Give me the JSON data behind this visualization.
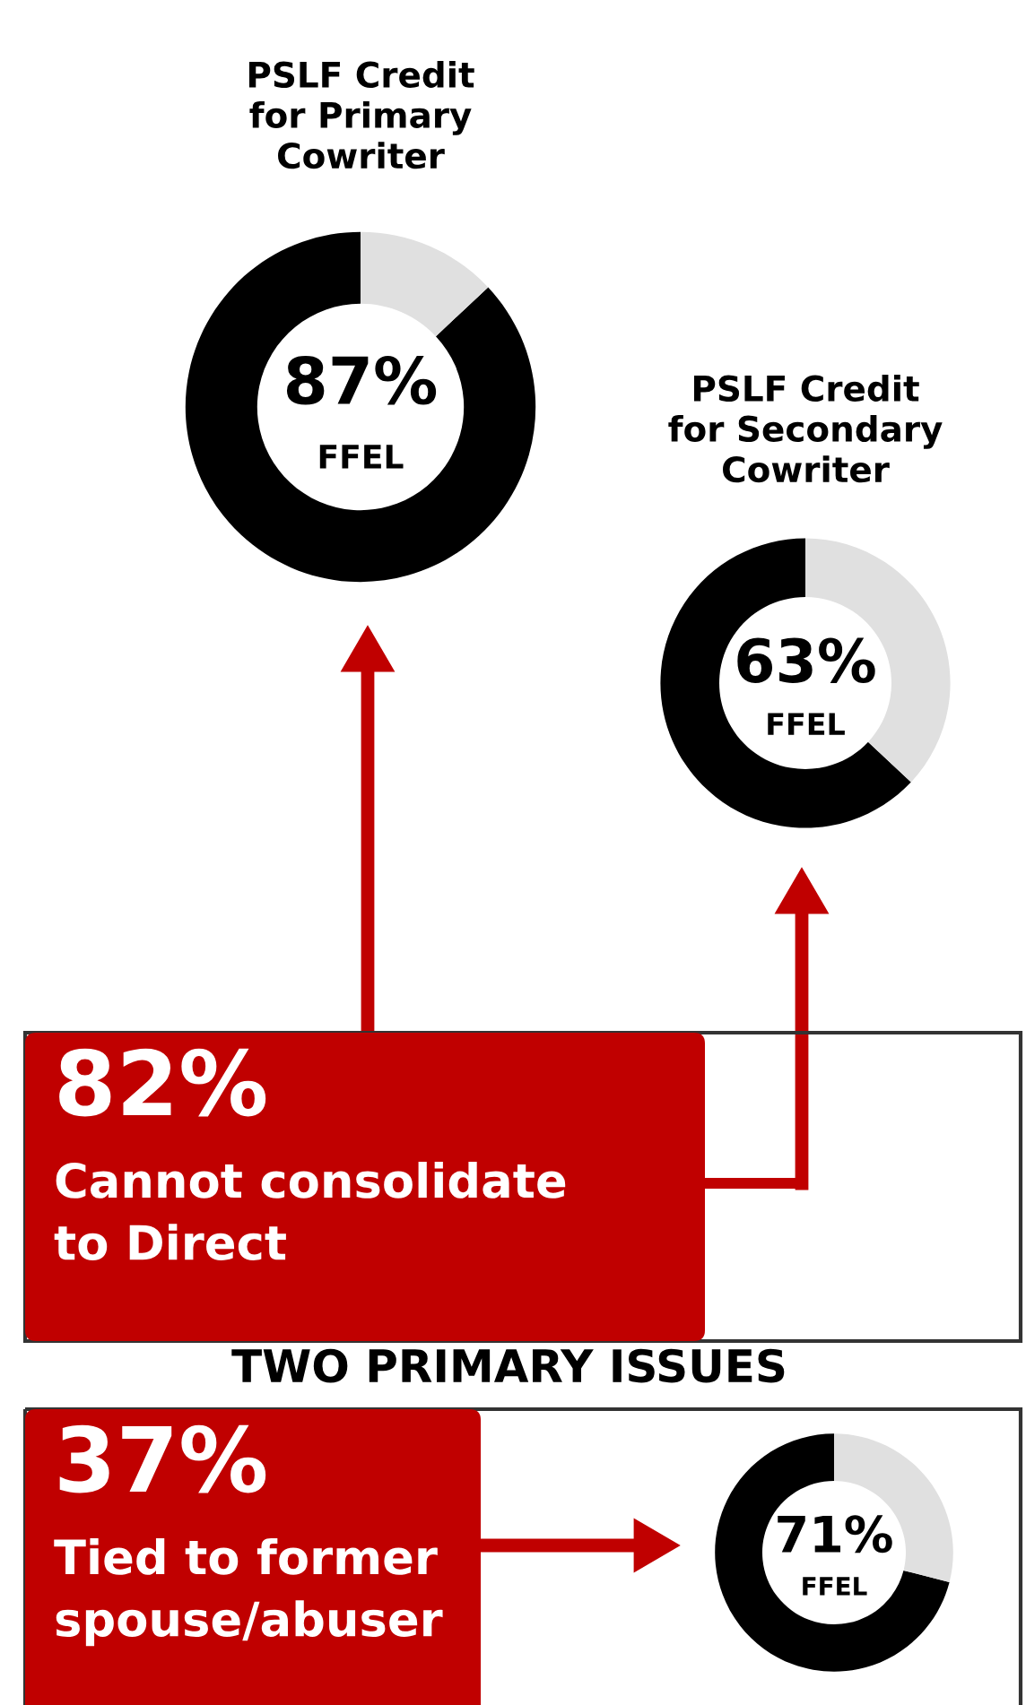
{
  "chart_data": [
    {
      "type": "donut",
      "title": "PSLF Credit\nfor Primary\nCowriter",
      "categories": [
        "FFEL",
        null
      ],
      "values": [
        87,
        13
      ],
      "colors": [
        "#000000",
        "#e0e0e0"
      ],
      "value_labels": [
        "87%",
        null
      ]
    },
    {
      "type": "donut",
      "title": "PSLF Credit\nfor Secondary\nCowriter",
      "categories": [
        "FFEL",
        null
      ],
      "values": [
        63,
        37
      ],
      "colors": [
        "#000000",
        "#e0e0e0"
      ],
      "value_labels": [
        "63%",
        null
      ]
    },
    {
      "type": "other",
      "annotations": [
        "82%",
        "Cannot consolidate\nto Direct"
      ]
    },
    {
      "type": "other",
      "title": "TWO PRIMARY ISSUES",
      "annotations": [
        "37%",
        "Tied to former\nspouse/abuser"
      ]
    },
    {
      "type": "donut",
      "categories": [
        "FFEL",
        null
      ],
      "values": [
        71,
        29
      ],
      "colors": [
        "#000000",
        "#e0e0e0"
      ],
      "value_labels": [
        "71%",
        null
      ]
    }
  ]
}
